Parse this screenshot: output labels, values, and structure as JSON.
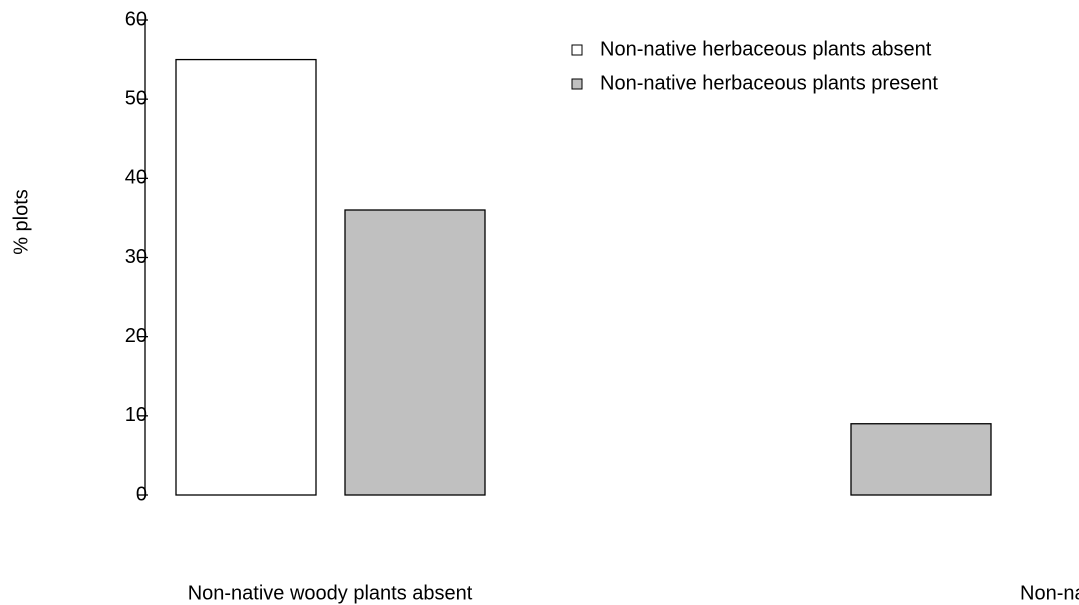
{
  "chart_data": {
    "type": "bar",
    "y_label": "% plots",
    "categories": [
      "Non-native woody plants absent",
      "Non-nat"
    ],
    "series": [
      {
        "name": "Non-native herbaceous plants absent",
        "color": "#ffffff",
        "values": [
          55,
          0
        ]
      },
      {
        "name": "Non-native herbaceous plants present",
        "color": "#c0c0c0",
        "values": [
          36,
          9
        ]
      }
    ],
    "ylim": [
      0,
      60
    ],
    "yticks": [
      0,
      10,
      20,
      30,
      40,
      50,
      60
    ],
    "legend": "top-right"
  }
}
